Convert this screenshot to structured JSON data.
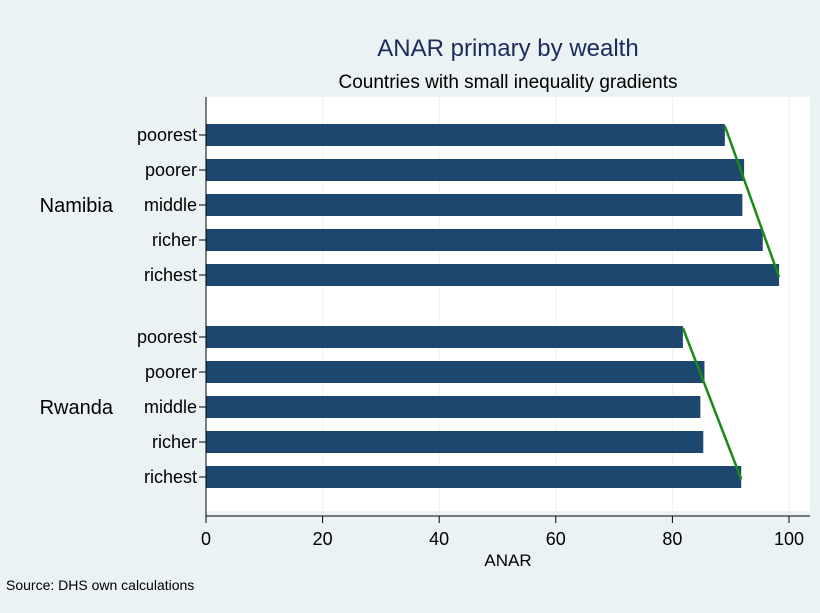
{
  "chart_data": {
    "type": "bar",
    "orientation": "horizontal",
    "title": "ANAR primary by wealth",
    "subtitle": "Countries with small inequality gradients",
    "xlabel": "ANAR",
    "ylabel": "",
    "xlim": [
      0,
      100
    ],
    "xticks": [
      "0",
      "20",
      "40",
      "60",
      "80",
      "100"
    ],
    "grid": true,
    "legend": "none",
    "note": "Source: DHS own calculations",
    "bar_color": "#1e4770",
    "trend_line_color": "#1a8a1a",
    "background_color": "#eaf2f3",
    "plot_background_color": "#ffffff",
    "groups": [
      {
        "name": "Namibia",
        "categories": [
          "poorest",
          "poorer",
          "middle",
          "richer",
          "richest"
        ],
        "values": [
          89,
          92.3,
          92,
          95.5,
          98.3
        ],
        "trend_line": {
          "from": 89,
          "to": 98.3
        }
      },
      {
        "name": "Rwanda",
        "categories": [
          "poorest",
          "poorer",
          "middle",
          "richer",
          "richest"
        ],
        "values": [
          81.8,
          85.5,
          84.8,
          85.3,
          91.8
        ],
        "trend_line": {
          "from": 81.8,
          "to": 91.8
        }
      }
    ]
  }
}
